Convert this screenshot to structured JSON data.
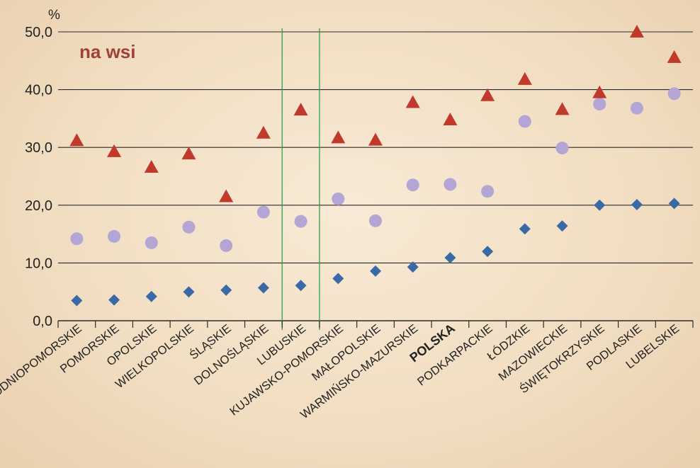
{
  "chart_data": {
    "type": "scatter",
    "unit_label": "%",
    "annotation": "na wsi",
    "ylim": [
      0,
      50
    ],
    "yticks": [
      "0,0",
      "10,0",
      "20,0",
      "30,0",
      "40,0",
      "50,0"
    ],
    "grid": true,
    "categories": [
      "ZACHODNIOPOMORSKIE",
      "POMORSKIE",
      "OPOLSKIE",
      "WIELKOPOLSKIE",
      "ŚLĄSKIE",
      "DOLNOŚLĄSKIE",
      "LUBUSKIE",
      "KUJAWSKO-POMORSKIE",
      "MAŁOPOLSKIE",
      "WARMIŃSKO-MAZURSKIE",
      "POLSKA",
      "PODKARPACKIE",
      "ŁÓDZKIE",
      "MAZOWIECKIE",
      "ŚWIĘTOKRZYSKIE",
      "PODLASKIE",
      "LUBELSKIE"
    ],
    "highlight_category": "LUBUSKIE",
    "bold_category": "POLSKA",
    "series": [
      {
        "marker": "diamond",
        "color": "#3a6aa5",
        "values": [
          3.5,
          3.6,
          4.2,
          5.0,
          5.3,
          5.7,
          6.1,
          7.3,
          8.6,
          9.3,
          10.9,
          12.0,
          15.9,
          16.4,
          20.0,
          20.1,
          20.3
        ]
      },
      {
        "marker": "circle",
        "color": "#b3a5d4",
        "values": [
          14.2,
          14.6,
          13.5,
          16.2,
          13.0,
          18.8,
          17.2,
          21.1,
          17.3,
          23.5,
          23.6,
          22.4,
          34.5,
          29.9,
          37.5,
          36.8,
          39.3
        ]
      },
      {
        "marker": "triangle",
        "color": "#c0392b",
        "values": [
          31.2,
          29.3,
          26.6,
          28.9,
          21.5,
          32.5,
          36.5,
          31.7,
          31.3,
          37.8,
          34.8,
          39.0,
          41.8,
          36.6,
          39.5,
          50.0,
          45.6
        ]
      }
    ],
    "colors": {
      "annotation": "#a0403a",
      "highlight": "#1f9a3a",
      "highlight_line": "#2ea04a",
      "grid": "#2b2b2b"
    }
  }
}
